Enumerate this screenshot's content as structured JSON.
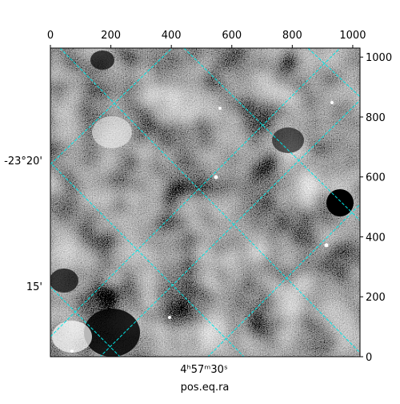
{
  "chart_data": {
    "type": "image",
    "xlabel": "pos.eq.ra",
    "xlim": [
      0,
      1024
    ],
    "xticks": [
      0,
      200,
      400,
      600,
      800,
      1000
    ],
    "ylim": [
      0,
      1030
    ],
    "yticks": [
      0,
      200,
      400,
      600,
      800,
      1000
    ],
    "ra_ticks": [
      "4ʰ57ᵐ30ˢ"
    ],
    "dec_ticks": [
      "-23°20'",
      "15'"
    ],
    "grid": true,
    "grid_color": "#00e5e5",
    "cmap": "gray"
  }
}
